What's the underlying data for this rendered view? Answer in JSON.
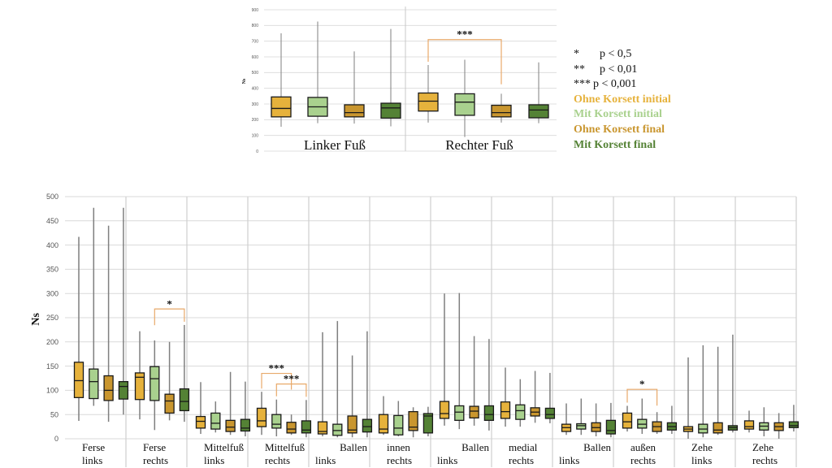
{
  "colors": {
    "ohne_initial": "#E6B23C",
    "mit_initial": "#A9D18E",
    "ohne_final": "#C9962F",
    "mit_final": "#548235",
    "bracket": "#E8A96A",
    "whisker": "#7F7F7F",
    "grid": "#D9D9D9"
  },
  "legend": {
    "significance": [
      {
        "symbol": "*",
        "text": "p < 0,5"
      },
      {
        "symbol": "**",
        "text": "p < 0,01"
      },
      {
        "symbol": "***",
        "text": "p < 0,001"
      }
    ],
    "series": [
      {
        "name": "Ohne Korsett initial",
        "color": "#E6B23C"
      },
      {
        "name": "Mit Korsett initial",
        "color": "#A9D18E"
      },
      {
        "name": "Ohne Korsett final",
        "color": "#C9962F"
      },
      {
        "name": "Mit Korsett final",
        "color": "#548235"
      }
    ]
  },
  "chart_data": [
    {
      "type": "box",
      "title": "",
      "ylabel": "Ns",
      "ylim": [
        0,
        900
      ],
      "yticks": [
        0,
        100,
        200,
        300,
        400,
        500,
        600,
        700,
        800,
        900
      ],
      "grid": true,
      "series_names": [
        "Ohne Korsett initial",
        "Mit Korsett initial",
        "Ohne Korsett final",
        "Mit Korsett final"
      ],
      "groups": [
        {
          "label_lines": [
            "Linker Fuß"
          ],
          "boxes": [
            {
              "min": 155,
              "q1": 218,
              "median": 272,
              "q3": 345,
              "max": 750
            },
            {
              "min": 178,
              "q1": 222,
              "median": 282,
              "q3": 342,
              "max": 825
            },
            {
              "min": 175,
              "q1": 218,
              "median": 245,
              "q3": 295,
              "max": 635
            },
            {
              "min": 158,
              "q1": 210,
              "median": 275,
              "q3": 305,
              "max": 778
            }
          ]
        },
        {
          "label_lines": [
            "Rechter Fuß"
          ],
          "boxes": [
            {
              "min": 182,
              "q1": 255,
              "median": 318,
              "q3": 370,
              "max": 548
            },
            {
              "min": 90,
              "q1": 228,
              "median": 312,
              "q3": 365,
              "max": 582
            },
            {
              "min": 182,
              "q1": 218,
              "median": 245,
              "q3": 292,
              "max": 365
            },
            {
              "min": 178,
              "q1": 212,
              "median": 262,
              "q3": 295,
              "max": 565
            }
          ]
        }
      ],
      "annotations": [
        {
          "group": 1,
          "from": 0,
          "to": 2,
          "label": "***",
          "level": 710
        }
      ]
    },
    {
      "type": "box",
      "title": "",
      "ylabel": "Ns",
      "ylim": [
        0,
        500
      ],
      "yticks": [
        0,
        50,
        100,
        150,
        200,
        250,
        300,
        350,
        400,
        450,
        500
      ],
      "grid": true,
      "series_names": [
        "Ohne Korsett initial",
        "Mit Korsett initial",
        "Ohne Korsett final",
        "Mit Korsett final"
      ],
      "groups": [
        {
          "label_lines": [
            "Ferse",
            "links"
          ],
          "boxes": [
            {
              "min": 37,
              "q1": 85,
              "median": 120,
              "q3": 158,
              "max": 417
            },
            {
              "min": 68,
              "q1": 83,
              "median": 118,
              "q3": 144,
              "max": 477
            },
            {
              "min": 35,
              "q1": 79,
              "median": 100,
              "q3": 130,
              "max": 440
            },
            {
              "min": 50,
              "q1": 82,
              "median": 108,
              "q3": 118,
              "max": 477
            }
          ]
        },
        {
          "label_lines": [
            "Ferse",
            "rechts"
          ],
          "boxes": [
            {
              "min": 40,
              "q1": 81,
              "median": 127,
              "q3": 136,
              "max": 222
            },
            {
              "min": 18,
              "q1": 79,
              "median": 124,
              "q3": 149,
              "max": 203
            },
            {
              "min": 38,
              "q1": 53,
              "median": 78,
              "q3": 92,
              "max": 200
            },
            {
              "min": 35,
              "q1": 58,
              "median": 77,
              "q3": 103,
              "max": 235
            }
          ]
        },
        {
          "label_lines": [
            "Mittelfuß",
            "links"
          ],
          "boxes": [
            {
              "min": 10,
              "q1": 22,
              "median": 36,
              "q3": 46,
              "max": 117
            },
            {
              "min": 13,
              "q1": 20,
              "median": 32,
              "q3": 53,
              "max": 77
            },
            {
              "min": 8,
              "q1": 15,
              "median": 24,
              "q3": 38,
              "max": 138
            },
            {
              "min": 5,
              "q1": 16,
              "median": 22,
              "q3": 40,
              "max": 118
            }
          ]
        },
        {
          "label_lines": [
            "Mittelfuß",
            "rechts"
          ],
          "boxes": [
            {
              "min": 8,
              "q1": 25,
              "median": 37,
              "q3": 63,
              "max": 97
            },
            {
              "min": 5,
              "q1": 22,
              "median": 30,
              "q3": 50,
              "max": 81
            },
            {
              "min": 8,
              "q1": 12,
              "median": 20,
              "q3": 34,
              "max": 50
            },
            {
              "min": 3,
              "q1": 12,
              "median": 18,
              "q3": 37,
              "max": 80
            }
          ]
        },
        {
          "label_lines": [
            "Ballen",
            "links"
          ],
          "label_align": "split",
          "boxes": [
            {
              "min": 5,
              "q1": 10,
              "median": 15,
              "q3": 35,
              "max": 220
            },
            {
              "min": 3,
              "q1": 7,
              "median": 17,
              "q3": 30,
              "max": 243
            },
            {
              "min": 3,
              "q1": 12,
              "median": 18,
              "q3": 47,
              "max": 172
            },
            {
              "min": 3,
              "q1": 14,
              "median": 25,
              "q3": 40,
              "max": 222
            }
          ]
        },
        {
          "label_lines": [
            "innen",
            "rechts"
          ],
          "boxes": [
            {
              "min": 8,
              "q1": 12,
              "median": 20,
              "q3": 50,
              "max": 88
            },
            {
              "min": 5,
              "q1": 8,
              "median": 22,
              "q3": 48,
              "max": 78
            },
            {
              "min": 3,
              "q1": 17,
              "median": 24,
              "q3": 56,
              "max": 65
            },
            {
              "min": 5,
              "q1": 12,
              "median": 47,
              "q3": 52,
              "max": 66
            }
          ]
        },
        {
          "label_lines": [
            "Ballen",
            "links"
          ],
          "label_align": "split",
          "boxes": [
            {
              "min": 27,
              "q1": 42,
              "median": 52,
              "q3": 77,
              "max": 300
            },
            {
              "min": 20,
              "q1": 38,
              "median": 55,
              "q3": 68,
              "max": 301
            },
            {
              "min": 27,
              "q1": 43,
              "median": 57,
              "q3": 67,
              "max": 212
            },
            {
              "min": 17,
              "q1": 38,
              "median": 50,
              "q3": 68,
              "max": 206
            }
          ]
        },
        {
          "label_lines": [
            "medial",
            "rechts"
          ],
          "boxes": [
            {
              "min": 25,
              "q1": 42,
              "median": 56,
              "q3": 76,
              "max": 147
            },
            {
              "min": 25,
              "q1": 40,
              "median": 58,
              "q3": 70,
              "max": 123
            },
            {
              "min": 33,
              "q1": 47,
              "median": 55,
              "q3": 64,
              "max": 140
            },
            {
              "min": 32,
              "q1": 42,
              "median": 50,
              "q3": 63,
              "max": 136
            }
          ]
        },
        {
          "label_lines": [
            "Ballen",
            "links"
          ],
          "label_align": "split",
          "boxes": [
            {
              "min": 8,
              "q1": 15,
              "median": 23,
              "q3": 30,
              "max": 73
            },
            {
              "min": 8,
              "q1": 20,
              "median": 27,
              "q3": 31,
              "max": 83
            },
            {
              "min": 5,
              "q1": 15,
              "median": 23,
              "q3": 33,
              "max": 73
            },
            {
              "min": 3,
              "q1": 10,
              "median": 17,
              "q3": 38,
              "max": 74
            }
          ]
        },
        {
          "label_lines": [
            "außen",
            "rechts"
          ],
          "boxes": [
            {
              "min": 15,
              "q1": 22,
              "median": 35,
              "q3": 53,
              "max": 68
            },
            {
              "min": 10,
              "q1": 22,
              "median": 30,
              "q3": 40,
              "max": 83
            },
            {
              "min": 10,
              "q1": 15,
              "median": 25,
              "q3": 35,
              "max": 55
            },
            {
              "min": 10,
              "q1": 18,
              "median": 25,
              "q3": 33,
              "max": 68
            }
          ]
        },
        {
          "label_lines": [
            "Zehe",
            "links"
          ],
          "boxes": [
            {
              "min": 0,
              "q1": 15,
              "median": 20,
              "q3": 25,
              "max": 168
            },
            {
              "min": 3,
              "q1": 12,
              "median": 20,
              "q3": 30,
              "max": 193
            },
            {
              "min": 8,
              "q1": 12,
              "median": 18,
              "q3": 33,
              "max": 190
            },
            {
              "min": 13,
              "q1": 18,
              "median": 23,
              "q3": 27,
              "max": 215
            }
          ]
        },
        {
          "label_lines": [
            "Zehe",
            "rechts"
          ],
          "boxes": [
            {
              "min": 13,
              "q1": 20,
              "median": 25,
              "q3": 37,
              "max": 58
            },
            {
              "min": 5,
              "q1": 18,
              "median": 26,
              "q3": 33,
              "max": 65
            },
            {
              "min": 0,
              "q1": 17,
              "median": 25,
              "q3": 33,
              "max": 53
            },
            {
              "min": 15,
              "q1": 23,
              "median": 27,
              "q3": 35,
              "max": 70
            }
          ]
        }
      ],
      "annotations": [
        {
          "group": 1,
          "from": 1,
          "to": 3,
          "label": "*",
          "level": 268
        },
        {
          "group": 3,
          "from": 0,
          "to": 2,
          "label": "***",
          "level": 135
        },
        {
          "group": 3,
          "from": 1,
          "to": 3,
          "label": "***",
          "level": 113
        },
        {
          "group": 9,
          "from": 0,
          "to": 2,
          "label": "*",
          "level": 102
        }
      ]
    }
  ]
}
